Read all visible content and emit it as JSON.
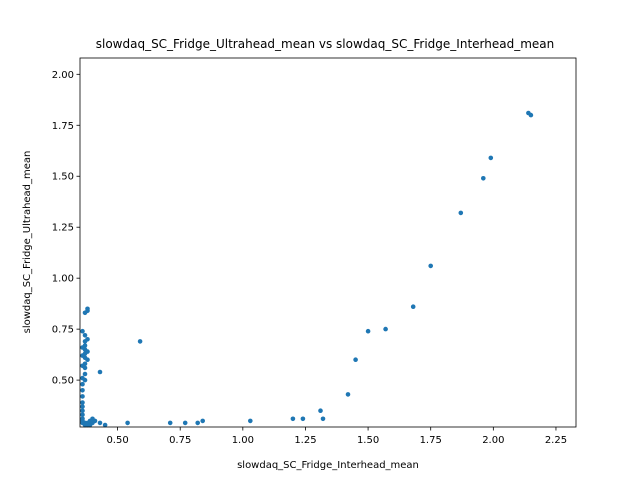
{
  "chart_data": {
    "type": "scatter",
    "title": "slowdaq_SC_Fridge_Ultrahead_mean vs slowdaq_SC_Fridge_Interhead_mean",
    "xlabel": "slowdaq_SC_Fridge_Interhead_mean",
    "ylabel": "slowdaq_SC_Fridge_Ultrahead_mean",
    "xlim": [
      0.35,
      2.33
    ],
    "ylim": [
      0.27,
      2.08
    ],
    "xticks": [
      0.5,
      0.75,
      1.0,
      1.25,
      1.5,
      1.75,
      2.0,
      2.25
    ],
    "xtick_labels": [
      "0.50",
      "0.75",
      "1.00",
      "1.25",
      "1.50",
      "1.75",
      "2.00",
      "2.25"
    ],
    "yticks": [
      0.5,
      0.75,
      1.0,
      1.25,
      1.5,
      1.75,
      2.0
    ],
    "ytick_labels": [
      "0.50",
      "0.75",
      "1.00",
      "1.25",
      "1.50",
      "1.75",
      "2.00"
    ],
    "color": "#1f77b4",
    "grid": false,
    "points": [
      [
        2.14,
        1.81
      ],
      [
        2.15,
        1.8
      ],
      [
        1.99,
        1.59
      ],
      [
        1.96,
        1.49
      ],
      [
        1.87,
        1.32
      ],
      [
        1.75,
        1.06
      ],
      [
        1.68,
        0.86
      ],
      [
        1.57,
        0.75
      ],
      [
        1.5,
        0.74
      ],
      [
        1.45,
        0.6
      ],
      [
        1.42,
        0.43
      ],
      [
        1.31,
        0.35
      ],
      [
        1.32,
        0.31
      ],
      [
        1.24,
        0.31
      ],
      [
        1.2,
        0.31
      ],
      [
        1.03,
        0.3
      ],
      [
        0.84,
        0.3
      ],
      [
        0.82,
        0.29
      ],
      [
        0.77,
        0.29
      ],
      [
        0.71,
        0.29
      ],
      [
        0.54,
        0.29
      ],
      [
        0.59,
        0.69
      ],
      [
        0.43,
        0.54
      ],
      [
        0.45,
        0.28
      ],
      [
        0.43,
        0.29
      ],
      [
        0.41,
        0.3
      ],
      [
        0.4,
        0.31
      ],
      [
        0.39,
        0.3
      ],
      [
        0.38,
        0.29
      ],
      [
        0.37,
        0.29
      ],
      [
        0.36,
        0.29
      ],
      [
        0.37,
        0.28
      ],
      [
        0.38,
        0.28
      ],
      [
        0.39,
        0.28
      ],
      [
        0.4,
        0.29
      ],
      [
        0.36,
        0.3
      ],
      [
        0.36,
        0.31
      ],
      [
        0.36,
        0.33
      ],
      [
        0.36,
        0.35
      ],
      [
        0.36,
        0.37
      ],
      [
        0.36,
        0.39
      ],
      [
        0.36,
        0.42
      ],
      [
        0.36,
        0.45
      ],
      [
        0.36,
        0.48
      ],
      [
        0.36,
        0.51
      ],
      [
        0.37,
        0.53
      ],
      [
        0.37,
        0.56
      ],
      [
        0.37,
        0.58
      ],
      [
        0.37,
        0.61
      ],
      [
        0.37,
        0.63
      ],
      [
        0.37,
        0.65
      ],
      [
        0.37,
        0.67
      ],
      [
        0.37,
        0.69
      ],
      [
        0.38,
        0.7
      ],
      [
        0.37,
        0.72
      ],
      [
        0.36,
        0.74
      ],
      [
        0.37,
        0.83
      ],
      [
        0.38,
        0.84
      ],
      [
        0.38,
        0.85
      ],
      [
        0.36,
        0.57
      ],
      [
        0.36,
        0.62
      ],
      [
        0.36,
        0.66
      ],
      [
        0.38,
        0.64
      ],
      [
        0.38,
        0.6
      ],
      [
        0.37,
        0.5
      ]
    ]
  }
}
